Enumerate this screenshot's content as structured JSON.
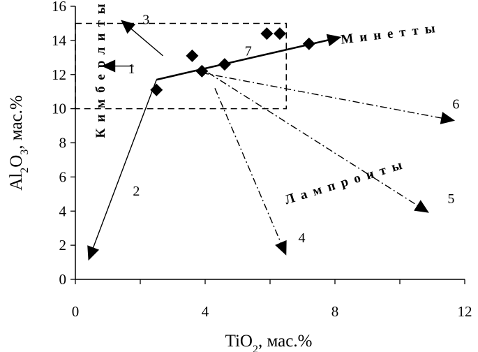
{
  "chart_data": {
    "type": "scatter",
    "xlabel": "TiO₂, мас.%",
    "ylabel": "Al₂O₃, мас.%",
    "xlim": [
      0,
      12
    ],
    "ylim": [
      0,
      16
    ],
    "x_ticks": [
      0,
      4,
      8,
      12
    ],
    "y_ticks": [
      0,
      2,
      4,
      6,
      8,
      10,
      12,
      14,
      16
    ],
    "grid": false,
    "points": [
      {
        "x": 2.5,
        "y": 11.1
      },
      {
        "x": 3.6,
        "y": 13.1
      },
      {
        "x": 3.9,
        "y": 12.2
      },
      {
        "x": 4.6,
        "y": 12.6
      },
      {
        "x": 5.9,
        "y": 14.4
      },
      {
        "x": 6.3,
        "y": 14.4
      },
      {
        "x": 7.2,
        "y": 13.8
      }
    ],
    "kimberlite_field": {
      "label": "Кимберлиты",
      "x_range": [
        0,
        6.5
      ],
      "y_range": [
        10,
        15
      ]
    },
    "field_labels": {
      "minettes": "Минетты",
      "lamproites": "Лампроиты"
    },
    "trends": [
      {
        "label": "1",
        "from": [
          1.8,
          12.5
        ],
        "to": [
          0.8,
          12.5
        ],
        "style": "solid"
      },
      {
        "label": "2",
        "from": [
          2.5,
          11.7
        ],
        "to": [
          0.4,
          1.1
        ],
        "style": "solid"
      },
      {
        "label": "3",
        "from": [
          2.7,
          13.1
        ],
        "to": [
          1.4,
          15.2
        ],
        "style": "solid"
      },
      {
        "label": "4",
        "from": [
          4.3,
          11.2
        ],
        "to": [
          6.5,
          1.4
        ],
        "style": "dashdot"
      },
      {
        "label": "5",
        "from": [
          4.1,
          12.1
        ],
        "to": [
          10.9,
          3.9
        ],
        "style": "dashdot"
      },
      {
        "label": "6",
        "from": [
          3.9,
          12.1
        ],
        "to": [
          11.7,
          9.3
        ],
        "style": "dashdot"
      },
      {
        "label": "7",
        "from": [
          2.5,
          11.7
        ],
        "to": [
          8.2,
          14.2
        ],
        "style": "solid"
      }
    ]
  }
}
